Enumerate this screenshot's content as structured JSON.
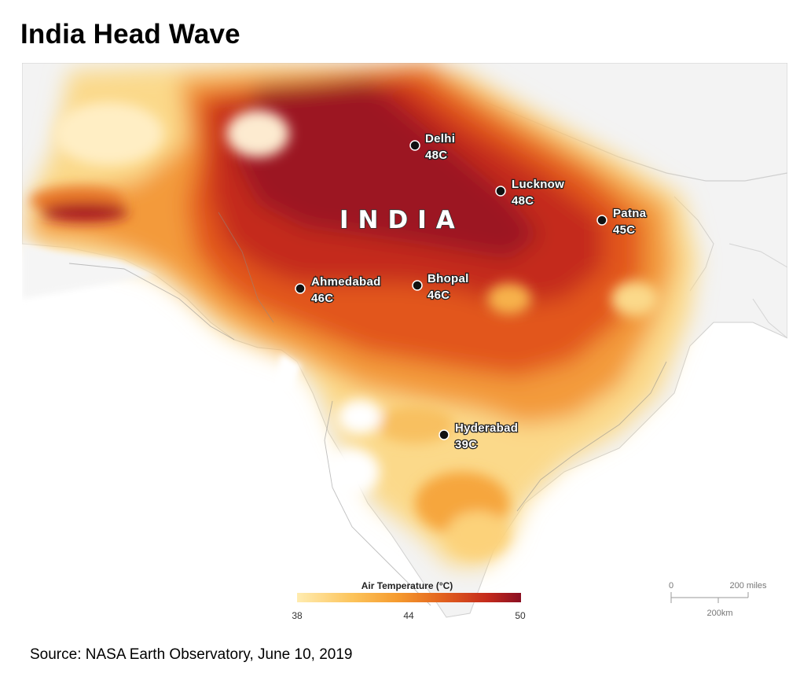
{
  "title": "India Head Wave",
  "source": "Source: NASA Earth Observatory, June 10, 2019",
  "map": {
    "country_label": "INDIA",
    "cities": [
      {
        "name": "Delhi",
        "temp": "48C"
      },
      {
        "name": "Lucknow",
        "temp": "48C"
      },
      {
        "name": "Patna",
        "temp": "45C"
      },
      {
        "name": "Ahmedabad",
        "temp": "46C"
      },
      {
        "name": "Bhopal",
        "temp": "46C"
      },
      {
        "name": "Hyderabad",
        "temp": "39C"
      }
    ],
    "legend": {
      "title": "Air Temperature (°C)",
      "min": "38",
      "mid": "44",
      "max": "50",
      "colors": [
        "#ffecb0",
        "#fcc35a",
        "#f59a2e",
        "#e2611e",
        "#c42a1c",
        "#8a0f22"
      ]
    },
    "scale": {
      "miles": "200 miles",
      "zero": "0",
      "km": "200km"
    }
  }
}
